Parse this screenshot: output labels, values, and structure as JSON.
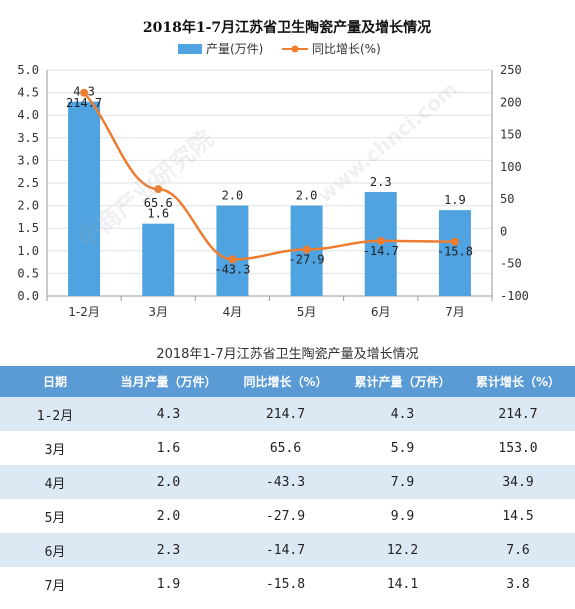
{
  "chart_data": {
    "type": "bar+line",
    "title": "2018年1-7月江苏省卫生陶瓷产量及增长情况",
    "categories": [
      "1-2月",
      "3月",
      "4月",
      "5月",
      "6月",
      "7月"
    ],
    "series": [
      {
        "name": "产量(万件)",
        "type": "bar",
        "axis": "left",
        "color": "#4fa3e0",
        "values": [
          4.3,
          1.6,
          2.0,
          2.0,
          2.3,
          1.9
        ],
        "labels": [
          "4.3",
          "1.6",
          "2.0",
          "2.0",
          "2.3",
          "1.9"
        ]
      },
      {
        "name": "同比增长(%)",
        "type": "line",
        "axis": "right",
        "color": "#ed7d31",
        "values": [
          214.7,
          65.6,
          -43.3,
          -27.9,
          -14.7,
          -15.8
        ],
        "labels": [
          "214.7",
          "65.6",
          "-43.3",
          "-27.9",
          "-14.7",
          "-15.8"
        ]
      }
    ],
    "y_left": {
      "min": 0,
      "max": 5.0,
      "ticks": [
        "0.0",
        "0.5",
        "1.0",
        "1.5",
        "2.0",
        "2.5",
        "3.0",
        "3.5",
        "4.0",
        "4.5",
        "5.0"
      ]
    },
    "y_right": {
      "min": -100,
      "max": 250,
      "ticks": [
        "-100",
        "-50",
        "0",
        "50",
        "100",
        "150",
        "200",
        "250"
      ]
    },
    "grid": true,
    "legend_position": "top-center"
  },
  "table": {
    "title": "2018年1-7月江苏省卫生陶瓷产量及增长情况",
    "headers": [
      "日期",
      "当月产量（万件）",
      "同比增长（%）",
      "累计产量（万件）",
      "累计增长（%）"
    ],
    "rows": [
      [
        "1-2月",
        "4.3",
        "214.7",
        "4.3",
        "214.7"
      ],
      [
        "3月",
        "1.6",
        "65.6",
        "5.9",
        "153.0"
      ],
      [
        "4月",
        "2.0",
        "-43.3",
        "7.9",
        "34.9"
      ],
      [
        "5月",
        "2.0",
        "-27.9",
        "9.9",
        "14.5"
      ],
      [
        "6月",
        "2.3",
        "-14.7",
        "12.2",
        "7.6"
      ],
      [
        "7月",
        "1.9",
        "-15.8",
        "14.1",
        "3.8"
      ]
    ]
  },
  "watermark": {
    "text_cn": "中商产业研究院",
    "text_url": "www.chnci.com"
  },
  "colors": {
    "bar": "#4fa3e0",
    "line": "#ed7d31",
    "header": "#5b9bd5",
    "stripe": "#dde8f5"
  }
}
